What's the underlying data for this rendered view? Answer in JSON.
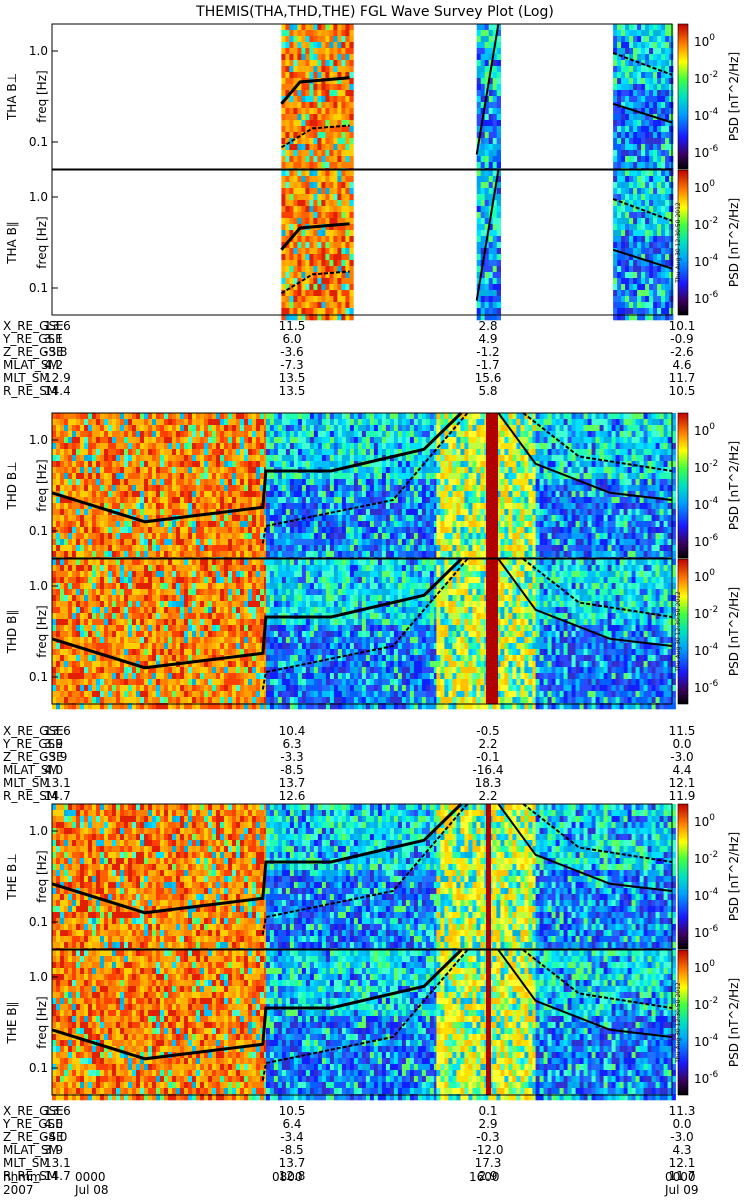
{
  "title": "THEMIS(THA,THD,THE) FGL Wave Survey Plot (Log)",
  "colorbar_label": "PSD [nT^2/Hz]",
  "colorbar_ticks": [
    "10^0",
    "10^-2",
    "10^-4",
    "10^-6"
  ],
  "stamp": "Thu Aug 30 12:30:50 2012",
  "colors": {
    "bg": "#ffffff",
    "axis": "#000000"
  },
  "chart_data": {
    "type": "heatmap",
    "x_axis": {
      "label": "hhmm",
      "year_label": "2007",
      "ticks": [
        "0000",
        "0800",
        "1600",
        "0000"
      ],
      "date_ticks": [
        "Jul 08",
        "Jul 09"
      ]
    },
    "y_axis": {
      "label": "freq [Hz]",
      "scale": "log",
      "ticks": [
        "1.0",
        "0.1"
      ]
    },
    "panels": [
      {
        "probe": "THA",
        "component": "B⊥",
        "ylabel": "THA B⊥"
      },
      {
        "probe": "THA",
        "component": "B∥",
        "ylabel": "THA B∥"
      },
      {
        "probe": "THD",
        "component": "B⊥",
        "ylabel": "THD B⊥"
      },
      {
        "probe": "THD",
        "component": "B∥",
        "ylabel": "THD B∥"
      },
      {
        "probe": "THE",
        "component": "B⊥",
        "ylabel": "THE B⊥"
      },
      {
        "probe": "THE",
        "component": "B∥",
        "ylabel": "THE B∥"
      }
    ],
    "ephemeris": [
      {
        "probe": "THA",
        "rows": [
          {
            "name": "X_RE_GSE",
            "values": [
              "13.6",
              "11.5",
              "2.8",
              "10.1"
            ]
          },
          {
            "name": "Y_RE_GSE",
            "values": [
              "3.1",
              "6.0",
              "4.9",
              "-0.9"
            ]
          },
          {
            "name": "Z_RE_GSE",
            "values": [
              "-3.8",
              "-3.6",
              "-1.2",
              "-2.6"
            ]
          },
          {
            "name": "MLAT_SM",
            "values": [
              "4.2",
              "-7.3",
              "-1.7",
              "4.6"
            ]
          },
          {
            "name": "MLT_SM",
            "values": [
              "12.9",
              "13.5",
              "15.6",
              "11.7"
            ]
          },
          {
            "name": "R_RE_SM",
            "values": [
              "14.4",
              "13.5",
              "5.8",
              "10.5"
            ]
          }
        ]
      },
      {
        "probe": "THD",
        "rows": [
          {
            "name": "X_RE_GSE",
            "values": [
              "13.6",
              "10.4",
              "-0.5",
              "11.5"
            ]
          },
          {
            "name": "Y_RE_GSE",
            "values": [
              "3.9",
              "6.3",
              "2.2",
              "0.0"
            ]
          },
          {
            "name": "Z_RE_GSE",
            "values": [
              "-3.9",
              "-3.3",
              "-0.1",
              "-3.0"
            ]
          },
          {
            "name": "MLAT_SM",
            "values": [
              "4.0",
              "-8.5",
              "-16.4",
              "4.4"
            ]
          },
          {
            "name": "MLT_SM",
            "values": [
              "13.1",
              "13.7",
              "18.3",
              "12.1"
            ]
          },
          {
            "name": "R_RE_SM",
            "values": [
              "14.7",
              "12.6",
              "2.2",
              "11.9"
            ]
          }
        ]
      },
      {
        "probe": "THE",
        "rows": [
          {
            "name": "X_RE_GSE",
            "values": [
              "13.6",
              "10.5",
              "0.1",
              "11.3"
            ]
          },
          {
            "name": "Y_RE_GSE",
            "values": [
              "4.0",
              "6.4",
              "2.9",
              "0.0"
            ]
          },
          {
            "name": "Z_RE_GSE",
            "values": [
              "-4.0",
              "-3.4",
              "-0.3",
              "-3.0"
            ]
          },
          {
            "name": "MLAT_SM",
            "values": [
              "3.9",
              "-8.5",
              "-12.0",
              "4.3"
            ]
          },
          {
            "name": "MLT_SM",
            "values": [
              "13.1",
              "13.7",
              "17.3",
              "12.1"
            ]
          },
          {
            "name": "R_RE_SM",
            "values": [
              "14.7",
              "12.8",
              "2.9",
              "11.7"
            ]
          }
        ]
      }
    ]
  }
}
